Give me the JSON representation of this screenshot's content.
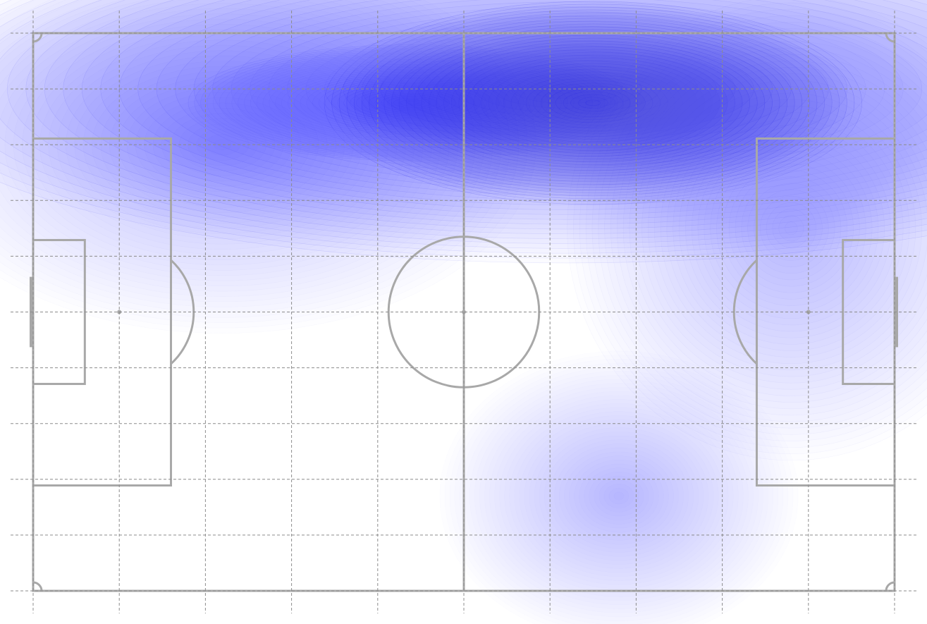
{
  "chart_data": {
    "type": "heatmap",
    "title": "",
    "xlabel": "",
    "ylabel": "",
    "xlim": [
      0,
      100
    ],
    "ylim": [
      0,
      100
    ],
    "grid": true,
    "grid_x_lines": [
      0,
      10,
      20,
      30,
      40,
      50,
      60,
      70,
      80,
      90,
      100
    ],
    "grid_y_lines": [
      0,
      10,
      20,
      30,
      40,
      50,
      60,
      70,
      80,
      90,
      100
    ],
    "density_color": "#3a3ae6",
    "pitch_line_color": "#a8a8a8",
    "grid_line_color": "#8c8c8c",
    "density_peaks": [
      {
        "x": 65,
        "y": 87.5,
        "sx": 12,
        "sy": 7,
        "weight": 1.0
      },
      {
        "x": 44,
        "y": 87.5,
        "sx": 10,
        "sy": 4,
        "weight": 0.45
      },
      {
        "x": 62,
        "y": 90,
        "sx": 30,
        "sy": 12,
        "weight": 0.55
      },
      {
        "x": 22,
        "y": 80,
        "sx": 14,
        "sy": 13,
        "weight": 0.14
      },
      {
        "x": 88,
        "y": 65,
        "sx": 10,
        "sy": 16,
        "weight": 0.22
      },
      {
        "x": 68,
        "y": 17,
        "sx": 8,
        "sy": 10,
        "weight": 0.08
      }
    ]
  }
}
